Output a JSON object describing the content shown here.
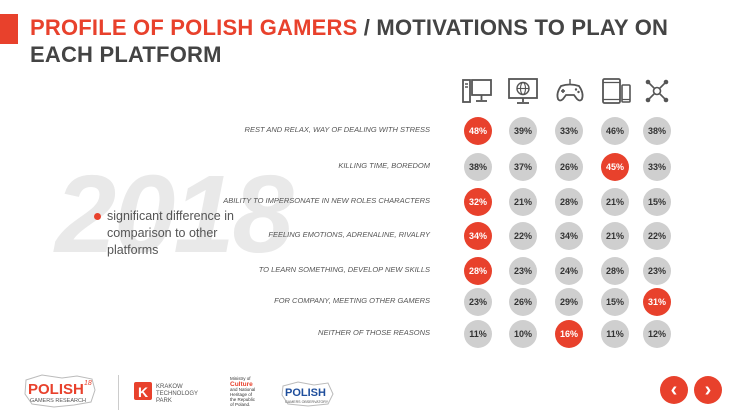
{
  "header": {
    "title_red": "PROFILE OF POLISH GAMERS",
    "title_rest": " / MOTIVATIONS TO PLAY ON EACH PLATFORM",
    "accent_color": "#e8412c"
  },
  "watermark": "2018",
  "legend": {
    "text": "significant difference in comparison to other platforms"
  },
  "platforms": [
    {
      "icon": "pc-icon"
    },
    {
      "icon": "browser-icon"
    },
    {
      "icon": "gamepad-icon"
    },
    {
      "icon": "mobile-icon"
    },
    {
      "icon": "all-platforms-icon"
    }
  ],
  "rows": [
    {
      "label": "REST AND RELAX, WAY OF DEALING WITH STRESS",
      "values": [
        "48%",
        "39%",
        "33%",
        "46%",
        "38%"
      ],
      "highlight": [
        true,
        false,
        false,
        false,
        false
      ]
    },
    {
      "label": "KILLING TIME, BOREDOM",
      "values": [
        "38%",
        "37%",
        "26%",
        "45%",
        "33%"
      ],
      "highlight": [
        false,
        false,
        false,
        true,
        false
      ]
    },
    {
      "label": "ABILITY TO IMPERSONATE IN NEW ROLES CHARACTERS",
      "values": [
        "32%",
        "21%",
        "28%",
        "21%",
        "15%"
      ],
      "highlight": [
        true,
        false,
        false,
        false,
        false
      ]
    },
    {
      "label": "FEELING EMOTIONS, ADRENALINE, RIVALRY",
      "values": [
        "34%",
        "22%",
        "34%",
        "21%",
        "22%"
      ],
      "highlight": [
        true,
        false,
        false,
        false,
        false
      ]
    },
    {
      "label": "TO LEARN SOMETHING, DEVELOP NEW SKILLS",
      "values": [
        "28%",
        "23%",
        "24%",
        "28%",
        "23%"
      ],
      "highlight": [
        true,
        false,
        false,
        false,
        false
      ]
    },
    {
      "label": "FOR COMPANY, MEETING OTHER GAMERS",
      "values": [
        "23%",
        "26%",
        "29%",
        "15%",
        "31%"
      ],
      "highlight": [
        false,
        false,
        false,
        false,
        true
      ]
    },
    {
      "label": "NEITHER OF THOSE REASONS",
      "values": [
        "11%",
        "10%",
        "16%",
        "11%",
        "12%"
      ],
      "highlight": [
        false,
        false,
        true,
        false,
        false
      ]
    }
  ],
  "footer": {
    "logo1": {
      "main": "POLISH",
      "sup": "18",
      "sub": "GAMERS RESEARCH"
    },
    "logo2": {
      "letter": "K",
      "line1": "KRAKOW",
      "line2": "TECHNOLOGY",
      "line3": "PARK"
    },
    "logo3": {
      "line1": "Ministry of",
      "line2": "Culture",
      "line3": "and National",
      "line4": "Heritage of",
      "line5": "the Republic",
      "line6": "of Poland."
    },
    "logo4": {
      "main": "POLISH",
      "sub": "GAMERS OBSERVATORY"
    },
    "prev_label": "‹",
    "next_label": "›"
  }
}
